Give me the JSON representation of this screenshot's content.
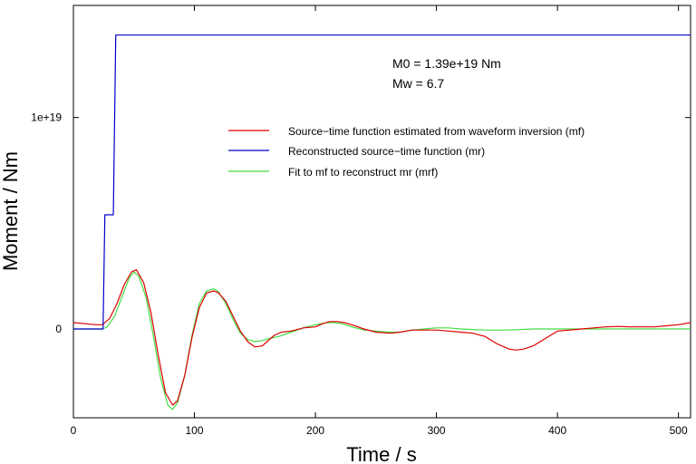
{
  "chart_data": {
    "type": "line",
    "xlabel": "Time / s",
    "ylabel": "Moment / Nm",
    "xlim": [
      0,
      510
    ],
    "ylim": [
      -4.2e+18,
      1.53e+19
    ],
    "x_ticks": [
      0,
      100,
      200,
      300,
      400,
      500
    ],
    "y_ticks": [
      {
        "value": 0,
        "label": "0"
      },
      {
        "value": 1e+19,
        "label": "1e+19"
      }
    ],
    "annotations": [
      "M0 = 1.39e+19 Nm",
      "Mw = 6.7"
    ],
    "legend_position": "upper-right",
    "series": [
      {
        "name": "Source−time function estimated from waveform inversion (mf)",
        "color": "#dd0000",
        "x": [
          0,
          10,
          18,
          24,
          30,
          36,
          42,
          48,
          52,
          58,
          64,
          70,
          76,
          82,
          86,
          92,
          98,
          104,
          110,
          116,
          120,
          126,
          132,
          138,
          144,
          150,
          156,
          160,
          166,
          172,
          180,
          190,
          200,
          206,
          212,
          218,
          224,
          230,
          240,
          250,
          262,
          270,
          280,
          290,
          300,
          310,
          320,
          330,
          340,
          350,
          360,
          366,
          372,
          380,
          390,
          400,
          410,
          420,
          430,
          440,
          450,
          460,
          470,
          480,
          490,
          500,
          510
        ],
        "y": [
          3e+17,
          2.5e+17,
          2e+17,
          2e+17,
          5e+17,
          1.2e+18,
          2.1e+18,
          2.7e+18,
          2.8e+18,
          2.2e+18,
          8e+17,
          -1.2e+18,
          -3e+18,
          -3.6e+18,
          -3.4e+18,
          -2.2e+18,
          -4e+17,
          1e+18,
          1.7e+18,
          1.8e+18,
          1.7e+18,
          1.3e+18,
          6e+17,
          -1e+17,
          -6e+17,
          -8.5e+17,
          -8e+17,
          -6e+17,
          -3e+17,
          -1.5e+17,
          -1e+17,
          5e+16,
          1e+17,
          2.5e+17,
          3.5e+17,
          3.5e+17,
          3e+17,
          2e+17,
          0.0,
          -1.5e+17,
          -2e+17,
          -1.5e+17,
          -5e+16,
          -5e+16,
          -5e+16,
          -1e+17,
          -1.5e+17,
          -2e+17,
          -3.5e+17,
          -7e+17,
          -9.5e+17,
          -1e+18,
          -9.5e+17,
          -8e+17,
          -4.5e+17,
          -1e+17,
          -5e+16,
          0.0,
          5e+16,
          1e+17,
          1.2e+17,
          1e+17,
          1e+17,
          1e+17,
          1.5e+17,
          2e+17,
          3e+17
        ]
      },
      {
        "name": "Reconstructed source−time function (mr)",
        "color": "#0000cc",
        "x": [
          0,
          24.5,
          26,
          33,
          35,
          37,
          510
        ],
        "y": [
          0,
          0,
          5.4e+18,
          5.4e+18,
          1.39e+19,
          1.39e+19,
          1.39e+19
        ]
      },
      {
        "name": "Fit to mf to reconstruct mr (mrf)",
        "color": "#44dd44",
        "x": [
          0,
          24,
          28,
          34,
          40,
          46,
          50,
          54,
          60,
          66,
          72,
          78,
          82,
          86,
          92,
          98,
          104,
          110,
          116,
          120,
          126,
          132,
          138,
          144,
          150,
          156,
          162,
          170,
          180,
          190,
          200,
          210,
          216,
          222,
          230,
          240,
          250,
          260,
          270,
          280,
          290,
          300,
          310,
          320,
          340,
          360,
          380,
          400,
          420,
          450,
          480,
          510
        ],
        "y": [
          0,
          0,
          1e+17,
          6e+17,
          1.5e+18,
          2.4e+18,
          2.7e+18,
          2.5e+18,
          1.5e+18,
          -3e+17,
          -2.3e+18,
          -3.6e+18,
          -3.8e+18,
          -3.5e+18,
          -2.2e+18,
          -3e+17,
          1.2e+18,
          1.8e+18,
          1.9e+18,
          1.75e+18,
          1.2e+18,
          4.5e+17,
          -2e+17,
          -5e+17,
          -6e+17,
          -5.5e+17,
          -4.5e+17,
          -3.5e+17,
          -1.5e+17,
          5e+16,
          2e+17,
          3e+17,
          3e+17,
          2.5e+17,
          1e+17,
          -5e+16,
          -1e+17,
          -1.5e+17,
          -1.5e+17,
          -5e+16,
          0.0,
          5e+16,
          5e+16,
          0.0,
          -5e+16,
          -5e+16,
          0.0,
          0.0,
          0.0,
          0.0,
          0.0,
          0.0
        ]
      }
    ]
  }
}
